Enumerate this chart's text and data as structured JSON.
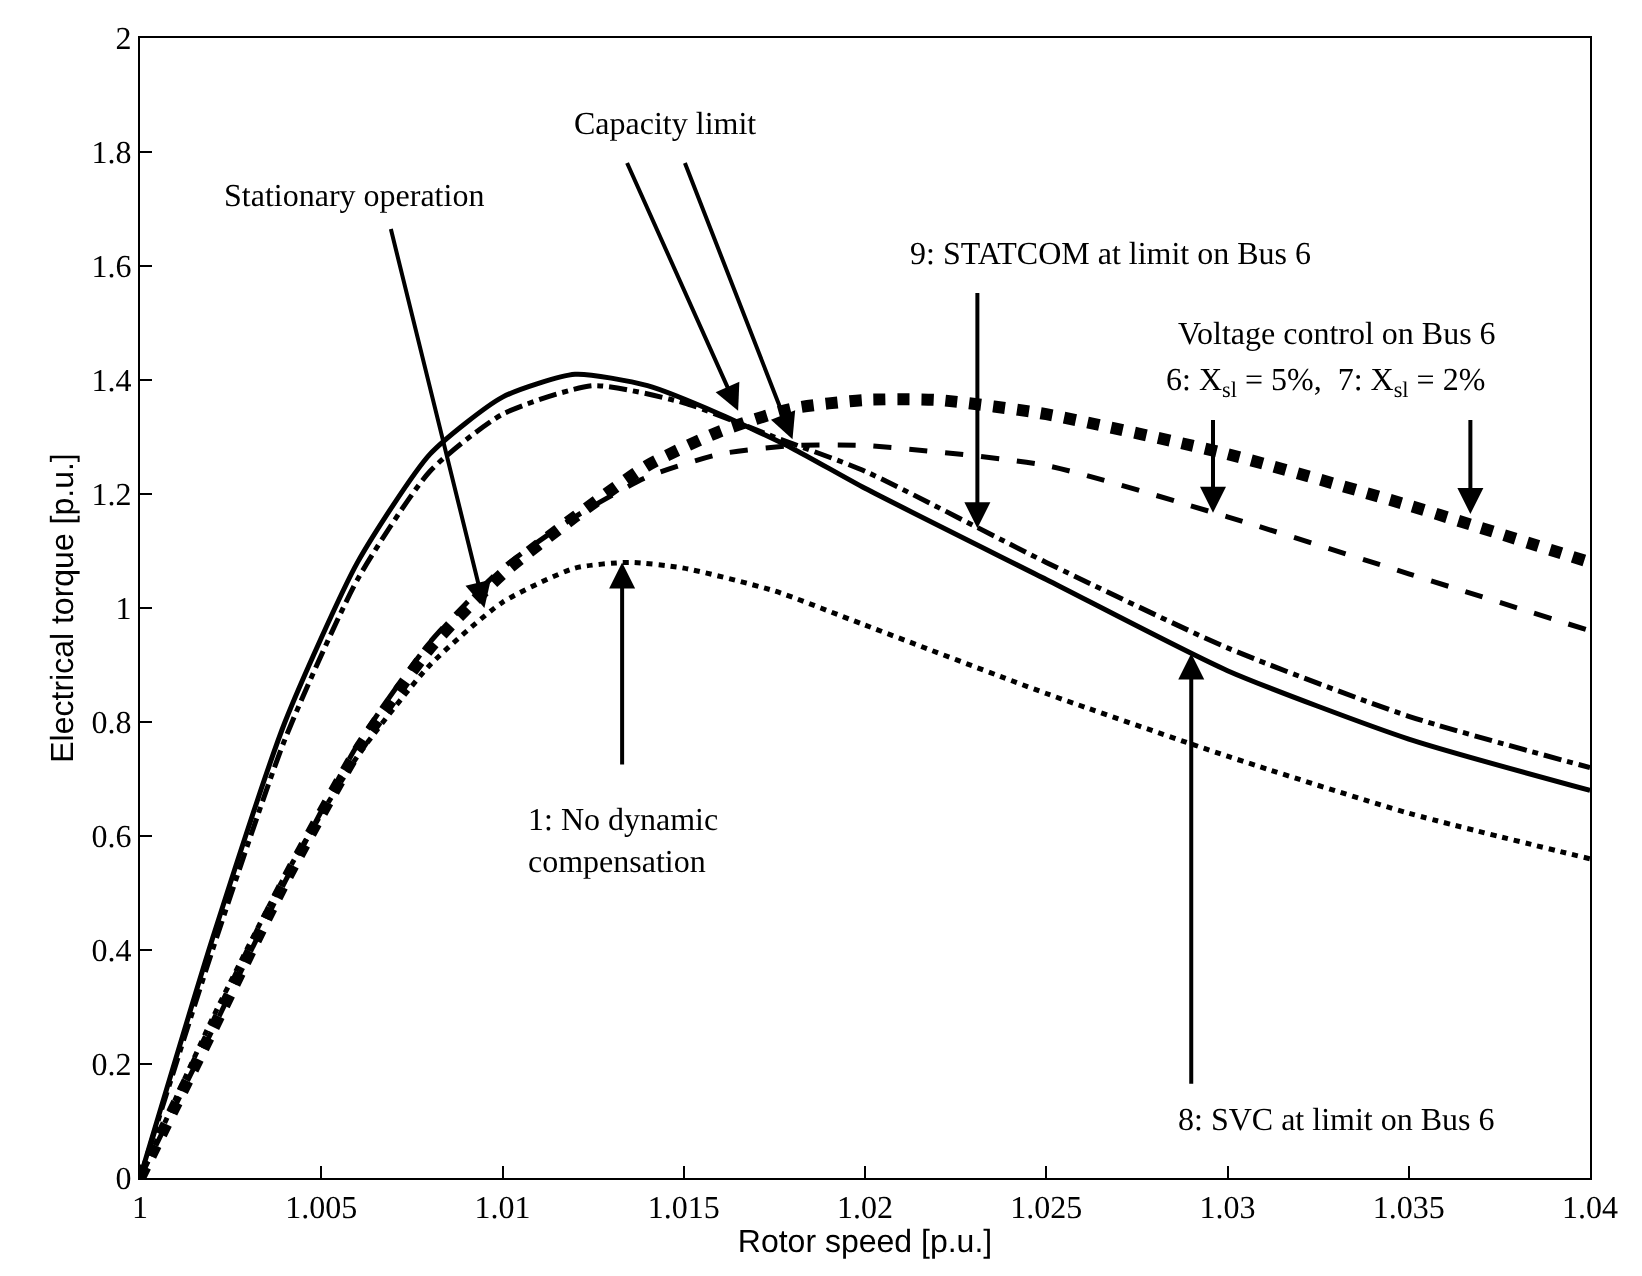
{
  "chart_data": {
    "type": "line",
    "xlabel": "Rotor speed [p.u.]",
    "ylabel": "Electrical torque [p.u.]",
    "xlim": [
      1,
      1.04
    ],
    "xticks": [
      1,
      1.005,
      1.01,
      1.015,
      1.02,
      1.025,
      1.03,
      1.035,
      1.04
    ],
    "ylim": [
      0,
      2
    ],
    "yticks": [
      0,
      0.2,
      0.4,
      0.6,
      0.8,
      1,
      1.2,
      1.4,
      1.6,
      1.8,
      2
    ],
    "marker": "none",
    "series": [
      {
        "color": "#000000",
        "line_style": "dotted",
        "x": [
          1,
          1.002,
          1.004,
          1.006,
          1.008,
          1.01,
          1.012,
          1.0135,
          1.015,
          1.0175,
          1.02,
          1.025,
          1.03,
          1.035,
          1.04
        ],
        "values": [
          0,
          0.28,
          0.53,
          0.74,
          0.9,
          1.01,
          1.07,
          1.08,
          1.07,
          1.03,
          0.97,
          0.85,
          0.74,
          0.64,
          0.56
        ]
      },
      {
        "color": "#000000",
        "line_style": "solid",
        "x": [
          1,
          1.002,
          1.004,
          1.006,
          1.008,
          1.01,
          1.012,
          1.014,
          1.016,
          1.018,
          1.02,
          1.025,
          1.03,
          1.035,
          1.04
        ],
        "values": [
          0,
          0.42,
          0.8,
          1.08,
          1.27,
          1.37,
          1.41,
          1.39,
          1.34,
          1.28,
          1.21,
          1.05,
          0.89,
          0.77,
          0.68
        ]
      },
      {
        "color": "#000000",
        "line_style": "dashdot",
        "x": [
          1,
          1.002,
          1.004,
          1.006,
          1.008,
          1.01,
          1.0125,
          1.015,
          1.0175,
          1.02,
          1.025,
          1.03,
          1.035,
          1.04
        ],
        "values": [
          0,
          0.4,
          0.77,
          1.05,
          1.24,
          1.34,
          1.39,
          1.36,
          1.3,
          1.24,
          1.08,
          0.93,
          0.81,
          0.72
        ]
      },
      {
        "color": "#000000",
        "line_style": "dashed",
        "x": [
          1,
          1.002,
          1.004,
          1.006,
          1.008,
          1.01,
          1.012,
          1.014,
          1.016,
          1.018,
          1.02,
          1.025,
          1.03,
          1.035,
          1.04
        ],
        "values": [
          0,
          0.26,
          0.52,
          0.76,
          0.94,
          1.07,
          1.16,
          1.23,
          1.27,
          1.285,
          1.285,
          1.25,
          1.16,
          1.06,
          0.96
        ]
      },
      {
        "color": "#000000",
        "line_style": "dotted",
        "x": [
          1,
          1.002,
          1.004,
          1.006,
          1.008,
          1.01,
          1.012,
          1.014,
          1.016,
          1.018,
          1.02,
          1.022,
          1.025,
          1.03,
          1.035,
          1.04
        ],
        "values": [
          0,
          0.26,
          0.52,
          0.75,
          0.93,
          1.06,
          1.16,
          1.25,
          1.31,
          1.35,
          1.365,
          1.365,
          1.34,
          1.27,
          1.18,
          1.08
        ]
      }
    ],
    "annotations": [
      {
        "text": "Stationary operation",
        "x": 1.0095,
        "y": 1.0
      },
      {
        "text": "Capacity limit",
        "x": 1.0165,
        "y": 1.346
      },
      {
        "text": "9: STATCOM at limit on Bus 6",
        "x": 1.0231,
        "y": 1.14
      },
      "Voltage control on Bus 6",
      {
        "text": "6: X$_{sl}$ = 5%,  7: X$_{sl}$ = 2%",
        "x": 1.0296,
        "y": 1.167
      },
      {
        "text": "1: No dynamic\ncompensation",
        "x": 1.0133,
        "y": 1.08
      },
      {
        "text": "8: SVC at limit on Bus 6",
        "x": 1.029,
        "y": 0.92
      }
    ]
  }
}
